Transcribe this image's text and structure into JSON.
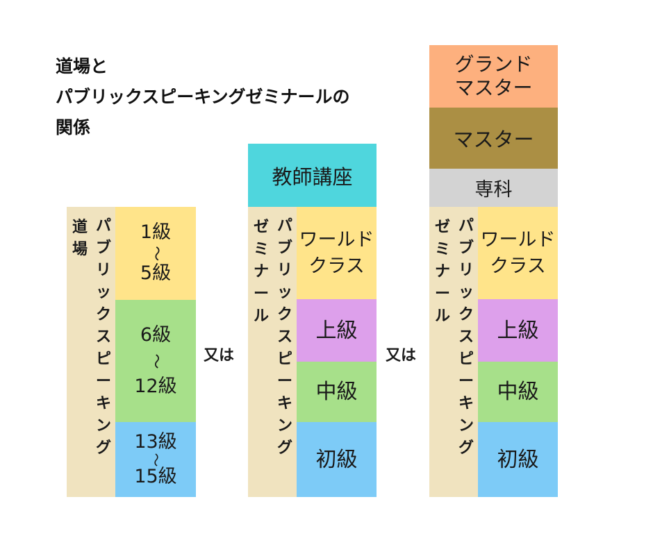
{
  "title": {
    "line1": "道場と",
    "line2": "パブリックスピーキングゼミナールの",
    "line3": "関係"
  },
  "columns": {
    "dojo": {
      "outer_label_1": "道場",
      "outer_label_2": "パブリックスピーキング",
      "levels": [
        {
          "top": "1級",
          "tilde": "〜",
          "bottom": "5級"
        },
        {
          "top": "6級",
          "tilde": "〜",
          "bottom": "12級"
        },
        {
          "top": "13級",
          "tilde": "〜",
          "bottom": "15級"
        }
      ]
    },
    "seminar": {
      "outer_label_1": "ゼミナール",
      "outer_label_2": "パブリックスピーキング",
      "top_block": "教師講座",
      "levels": [
        "ワールド\nクラス",
        "上級",
        "中級",
        "初級"
      ]
    },
    "seminar_master": {
      "outer_label_1": "ゼミナール",
      "outer_label_2": "パブリックスピーキング",
      "top_blocks": [
        "グランド\nマスター",
        "マスター",
        "専科"
      ],
      "levels": [
        "ワールド\nクラス",
        "上級",
        "中級",
        "初級"
      ]
    }
  },
  "separators": [
    "又は",
    "又は"
  ],
  "colors": {
    "beige": "#F0E3BF",
    "yellow": "#FFE48A",
    "green": "#A7E08A",
    "blue": "#7DCBF7",
    "purple": "#DDA0EB",
    "teal": "#4FD6DD",
    "orange": "#FDB07E",
    "olive": "#AB8F44",
    "gray": "#D3D3D3"
  }
}
